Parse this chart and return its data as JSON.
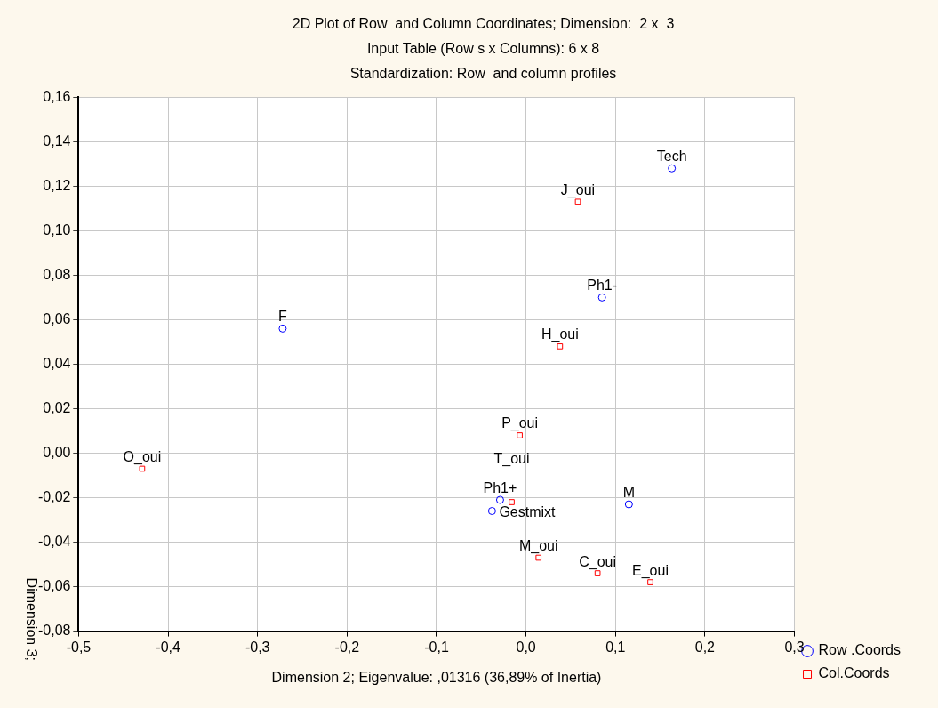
{
  "chart_data": {
    "type": "scatter",
    "title": "2D Plot of Row  and Column Coordinates; Dimension:  2 x  3",
    "subtitle": "Input Table (Row s x Columns): 6 x 8\nStandardization: Row  and column profiles",
    "xlabel": "Dimension 2; Eigenvalue: ,01316 (36,89% of Inertia)",
    "ylabel": "Dimension 3;",
    "series": [
      {
        "name": "Row .Coords",
        "color": "#0000ff",
        "marker": "circle",
        "x": [
          0.163,
          0.085,
          -0.272,
          -0.029,
          -0.038,
          0.115
        ],
        "values": [
          0.128,
          0.07,
          0.056,
          -0.021,
          -0.026,
          -0.023
        ]
      },
      {
        "name": "Col.Coords",
        "color": "#ff0000",
        "marker": "square",
        "x": [
          0.058,
          0.038,
          -0.007,
          -0.429,
          -0.016,
          0.014,
          0.08,
          0.139
        ],
        "values": [
          0.113,
          0.048,
          0.008,
          -0.007,
          -0.022,
          -0.047,
          -0.054,
          -0.058
        ]
      }
    ],
    "annotations": [
      {
        "text": "Tech",
        "x": 0.163,
        "y": 0.128
      },
      {
        "text": "Ph1-",
        "x": 0.085,
        "y": 0.07
      },
      {
        "text": "F",
        "x": -0.272,
        "y": 0.056
      },
      {
        "text": "Ph1+",
        "x": -0.029,
        "y": -0.021
      },
      {
        "text": "Gestmixt",
        "x": -0.038,
        "y": -0.026
      },
      {
        "text": "M",
        "x": 0.115,
        "y": -0.023
      },
      {
        "text": "J_oui",
        "x": 0.058,
        "y": 0.113
      },
      {
        "text": "H_oui",
        "x": 0.038,
        "y": 0.048
      },
      {
        "text": "P_oui",
        "x": -0.007,
        "y": 0.008
      },
      {
        "text": "O_oui",
        "x": -0.429,
        "y": -0.007
      },
      {
        "text": "T_oui",
        "x": -0.016,
        "y": -0.022
      },
      {
        "text": "M_oui",
        "x": 0.014,
        "y": -0.047
      },
      {
        "text": "C_oui",
        "x": 0.08,
        "y": -0.054
      },
      {
        "text": "E_oui",
        "x": 0.139,
        "y": -0.058
      }
    ],
    "xlim": [
      -0.5,
      0.3
    ],
    "xticks": [
      {
        "value": -0.5,
        "label": "-0,5"
      },
      {
        "value": -0.4,
        "label": "-0,4"
      },
      {
        "value": -0.3,
        "label": "-0,3"
      },
      {
        "value": -0.2,
        "label": "-0,2"
      },
      {
        "value": -0.1,
        "label": "-0,1"
      },
      {
        "value": 0,
        "label": "0,0"
      },
      {
        "value": 0.1,
        "label": "0,1"
      },
      {
        "value": 0.2,
        "label": "0,2"
      },
      {
        "value": 0.3,
        "label": "0,3"
      }
    ],
    "ylim": [
      -0.08,
      0.16
    ],
    "yticks": [
      {
        "value": -0.08,
        "label": "-0,08"
      },
      {
        "value": -0.06,
        "label": "-0,06"
      },
      {
        "value": -0.04,
        "label": "-0,04"
      },
      {
        "value": -0.02,
        "label": "-0,02"
      },
      {
        "value": 0,
        "label": "0,00"
      },
      {
        "value": 0.02,
        "label": "0,02"
      },
      {
        "value": 0.04,
        "label": "0,04"
      },
      {
        "value": 0.06,
        "label": "0,06"
      },
      {
        "value": 0.08,
        "label": "0,08"
      },
      {
        "value": 0.1,
        "label": "0,10"
      },
      {
        "value": 0.12,
        "label": "0,12"
      },
      {
        "value": 0.14,
        "label": "0,14"
      },
      {
        "value": 0.16,
        "label": "0,16"
      }
    ],
    "grid": true,
    "legend": "bottom right"
  }
}
